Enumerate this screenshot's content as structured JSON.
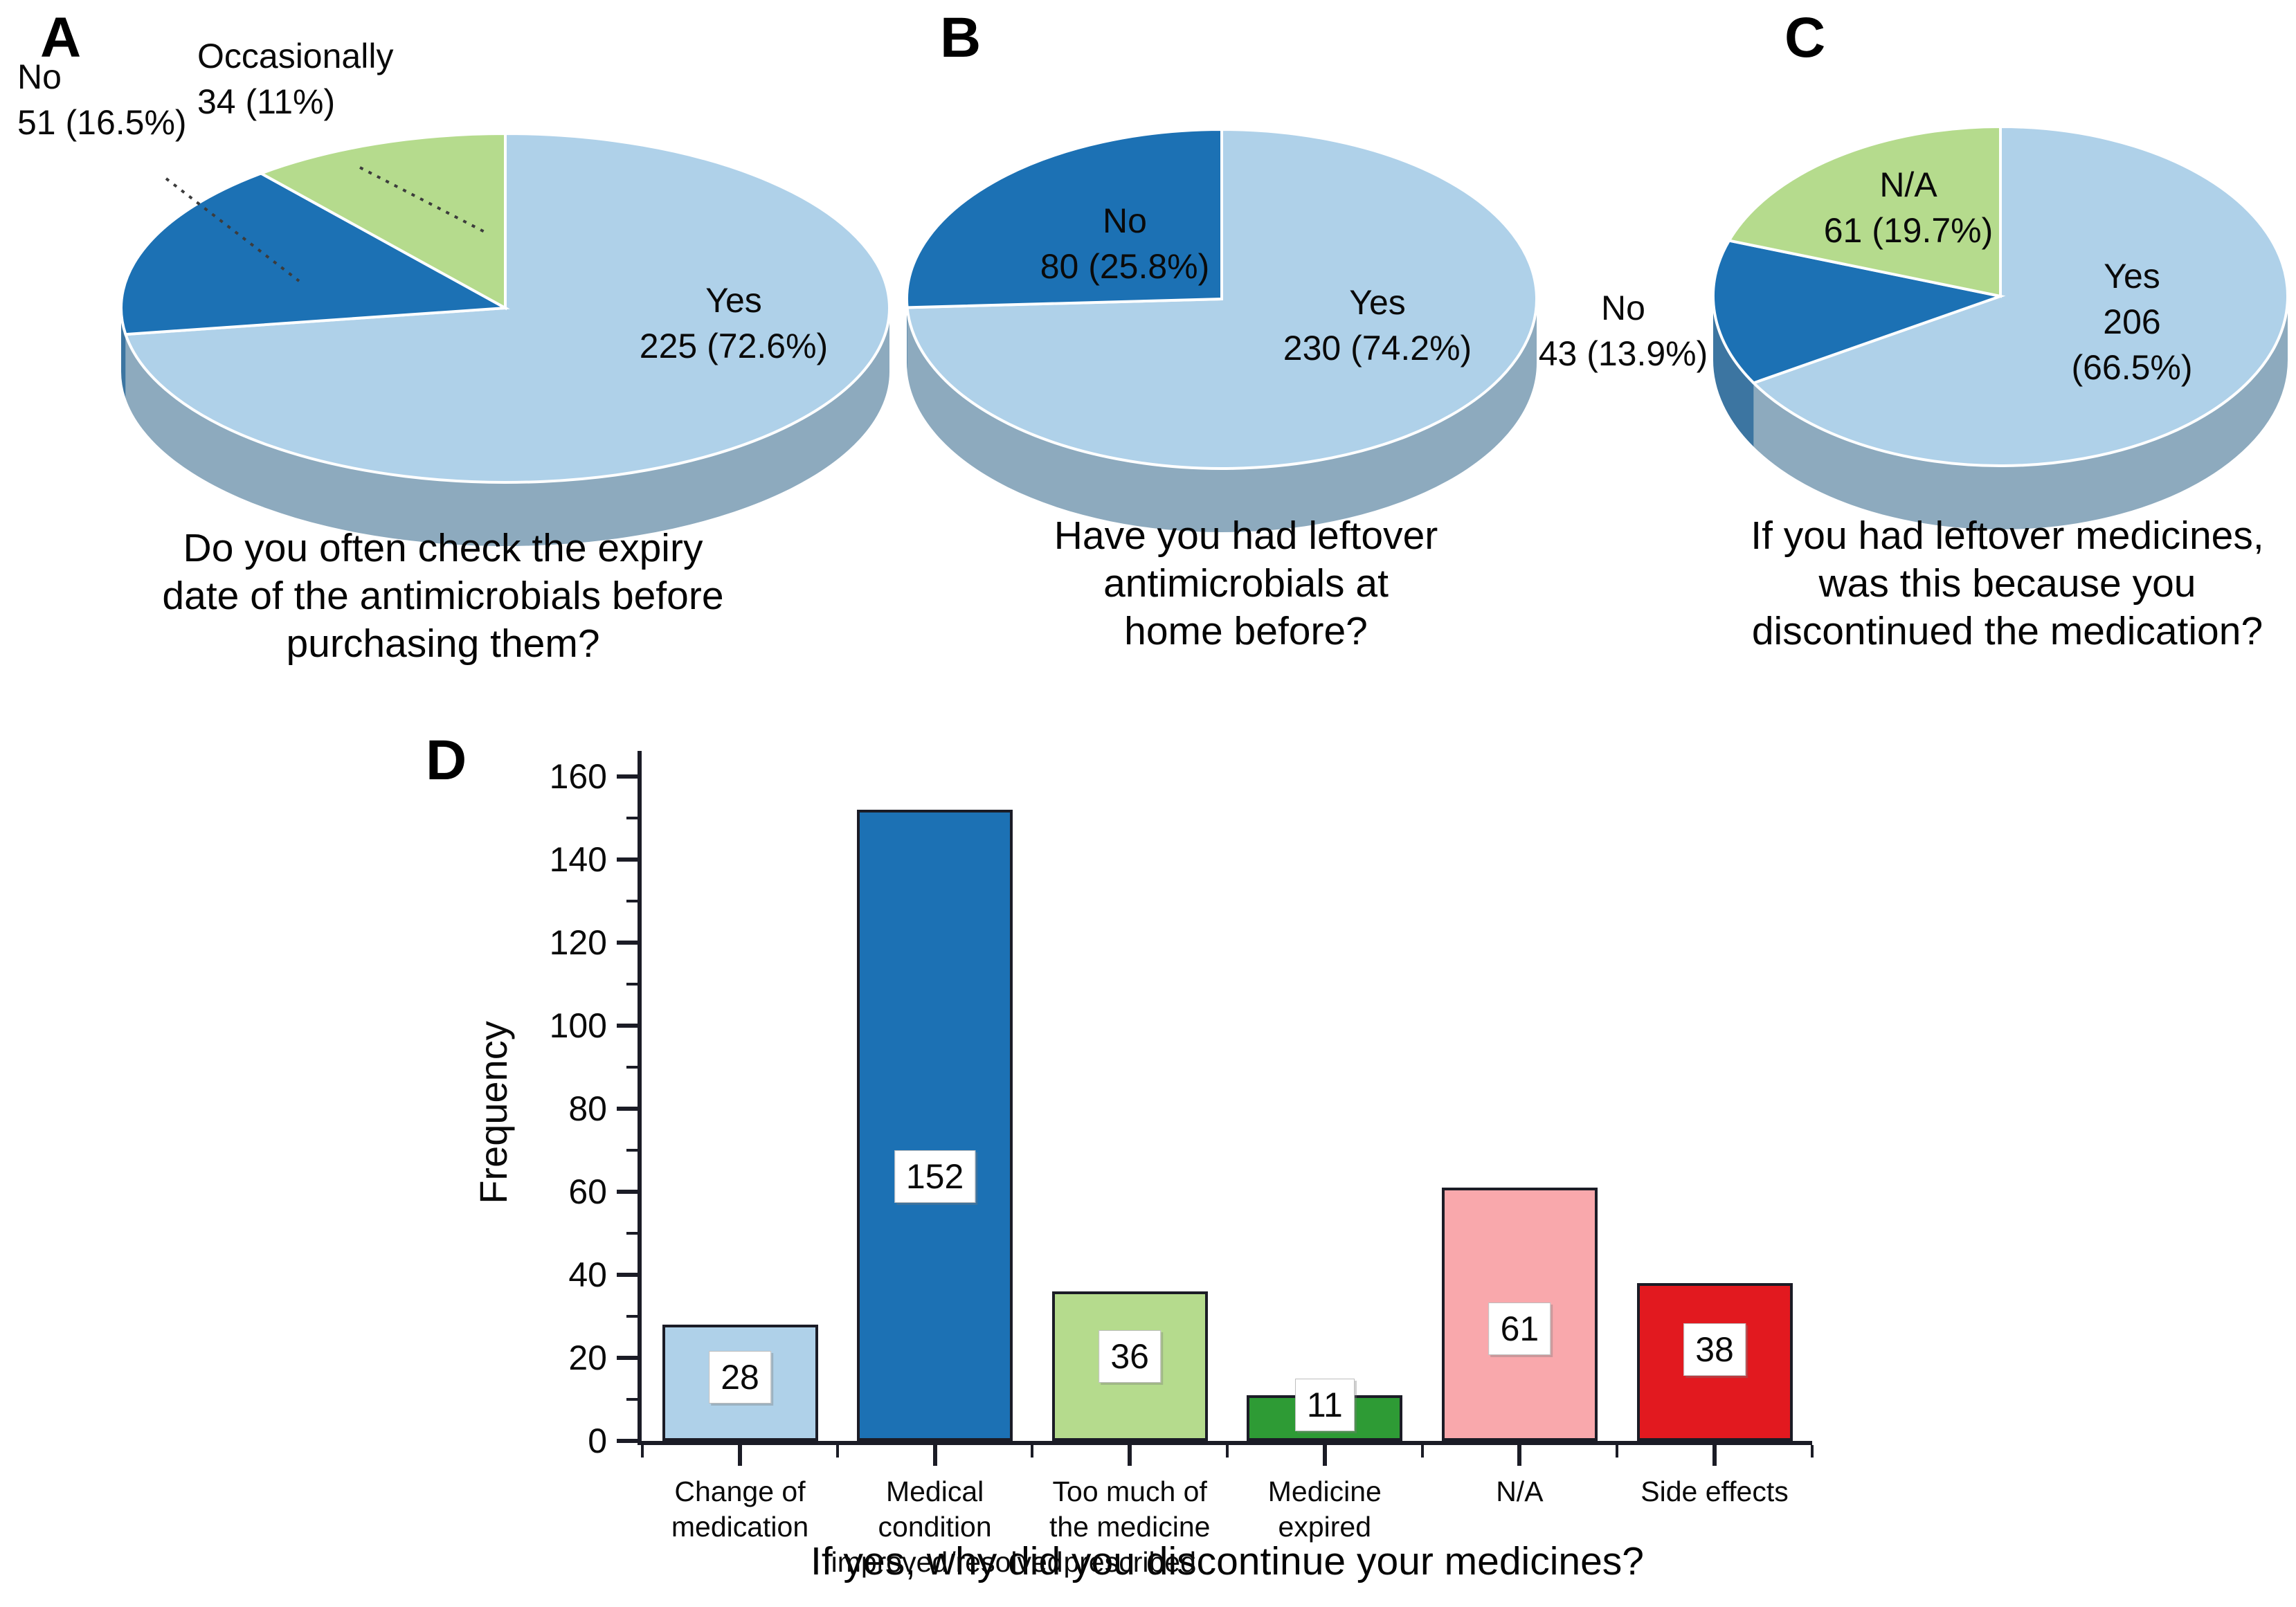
{
  "figure": {
    "panels": [
      {
        "letter": "A",
        "caption": "Do you often check the expiry\ndate of the antimicrobials before\npurchasing them?"
      },
      {
        "letter": "B",
        "caption": "Have you had leftover\nantimicrobials at\nhome before?"
      },
      {
        "letter": "C",
        "caption": "If you had leftover medicines,\nwas this because you\ndiscontinued the medication?"
      },
      {
        "letter": "D"
      }
    ]
  },
  "colors": {
    "light_blue": "#AFD1E9",
    "dark_blue": "#1C71B4",
    "light_green": "#B5DB8D",
    "dark_green": "#2E9B35",
    "pink": "#F9A8AC",
    "red": "#E2191F",
    "axis": "#1b1c26"
  },
  "chart_data": [
    {
      "type": "pie",
      "panel": "A",
      "title": "Do you often check the expiry date of the antimicrobials before purchasing them?",
      "slices": [
        {
          "label": "Yes",
          "value": 225,
          "pct": "72.6%",
          "color": "#AFD1E9",
          "label_placement": "inside"
        },
        {
          "label": "No",
          "value": 51,
          "pct": "16.5%",
          "color": "#1C71B4",
          "label_placement": "outside"
        },
        {
          "label": "Occasionally",
          "value": 34,
          "pct": "11%",
          "color": "#B5DB8D",
          "label_placement": "outside"
        }
      ]
    },
    {
      "type": "pie",
      "panel": "B",
      "title": "Have you had leftover antimicrobials at home before?",
      "slices": [
        {
          "label": "Yes",
          "value": 230,
          "pct": "74.2%",
          "color": "#AFD1E9",
          "label_placement": "inside"
        },
        {
          "label": "No",
          "value": 80,
          "pct": "25.8%",
          "color": "#1C71B4",
          "label_placement": "inside"
        }
      ]
    },
    {
      "type": "pie",
      "panel": "C",
      "title": "If you had leftover medicines, was this because you discontinued the medication?",
      "slices": [
        {
          "label": "Yes",
          "value": 206,
          "pct": "66.5%",
          "color": "#AFD1E9",
          "label_placement": "inside"
        },
        {
          "label": "No",
          "value": 43,
          "pct": "13.9%",
          "color": "#1C71B4",
          "label_placement": "outside"
        },
        {
          "label": "N/A",
          "value": 61,
          "pct": "19.7%",
          "color": "#B5DB8D",
          "label_placement": "inside"
        }
      ]
    },
    {
      "type": "bar",
      "panel": "D",
      "title": "If yes, why did you discontinue your medicines?",
      "xlabel": "If yes, why did you discontinue your medicines?",
      "ylabel": "Frequency",
      "ylim": [
        0,
        166
      ],
      "yticks": [
        0,
        20,
        40,
        60,
        80,
        100,
        120,
        140,
        160
      ],
      "grid": false,
      "legend": "none",
      "categories": [
        "Change of\nmedication",
        "Medical\ncondition\nimproved/resolved",
        "Too much of\nthe medicine\nprescribed",
        "Medicine\nexpired",
        "N/A",
        "Side effects"
      ],
      "values": [
        28,
        152,
        36,
        11,
        61,
        38
      ],
      "bar_colors": [
        "#AFD1E9",
        "#1C71B4",
        "#B5DB8D",
        "#2E9B35",
        "#F9A8AC",
        "#E2191F"
      ]
    }
  ]
}
